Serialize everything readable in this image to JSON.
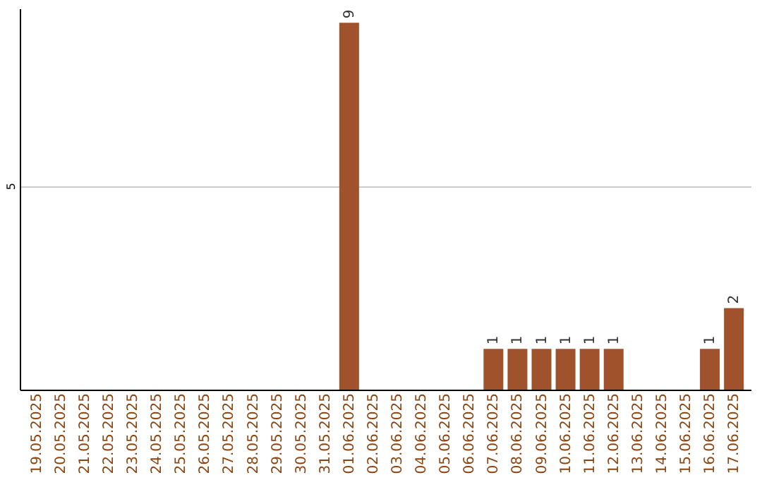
{
  "chart_data": {
    "type": "bar",
    "categories": [
      "19.05.2025",
      "20.05.2025",
      "21.05.2025",
      "22.05.2025",
      "23.05.2025",
      "24.05.2025",
      "25.05.2025",
      "26.05.2025",
      "27.05.2025",
      "28.05.2025",
      "29.05.2025",
      "30.05.2025",
      "31.05.2025",
      "01.06.2025",
      "02.06.2025",
      "03.06.2025",
      "04.06.2025",
      "05.06.2025",
      "06.06.2025",
      "07.06.2025",
      "08.06.2025",
      "09.06.2025",
      "10.06.2025",
      "11.06.2025",
      "12.06.2025",
      "13.06.2025",
      "14.06.2025",
      "15.06.2025",
      "16.06.2025",
      "17.06.2025"
    ],
    "values": [
      null,
      null,
      null,
      null,
      null,
      null,
      null,
      null,
      null,
      null,
      null,
      null,
      null,
      9,
      null,
      null,
      null,
      null,
      null,
      1,
      1,
      1,
      1,
      1,
      1,
      null,
      null,
      null,
      1,
      2
    ],
    "data_labels": true,
    "color": "#a0522d",
    "ylim": [
      0,
      9.35
    ],
    "yticks": [
      5
    ],
    "grid": "y"
  }
}
